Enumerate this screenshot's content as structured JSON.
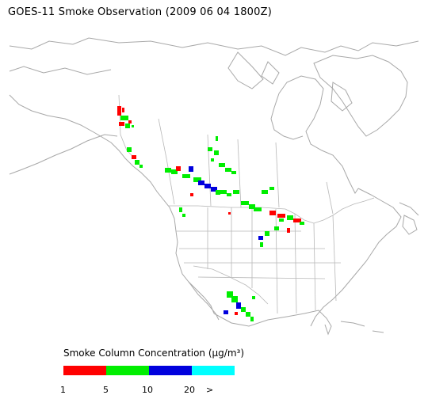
{
  "title": "GOES-11 Smoke Observation (2009 06 04  1800Z)",
  "legend": {
    "title": "Smoke Column Concentration (μg/m³)",
    "bins": [
      {
        "from": "1",
        "to": "5",
        "color": "#ff0000"
      },
      {
        "from": "5",
        "to": "10",
        "color": "#00ee00"
      },
      {
        "from": "10",
        "to": "20",
        "color": "#0000dd"
      },
      {
        "from": "20",
        "to": ">",
        "color": "#00ffff"
      }
    ],
    "tick_labels": [
      "1",
      "5",
      "10",
      "20",
      ">"
    ]
  },
  "map": {
    "coastline_color": "#a8a8a8",
    "border_color": "#b8b8b8"
  }
}
